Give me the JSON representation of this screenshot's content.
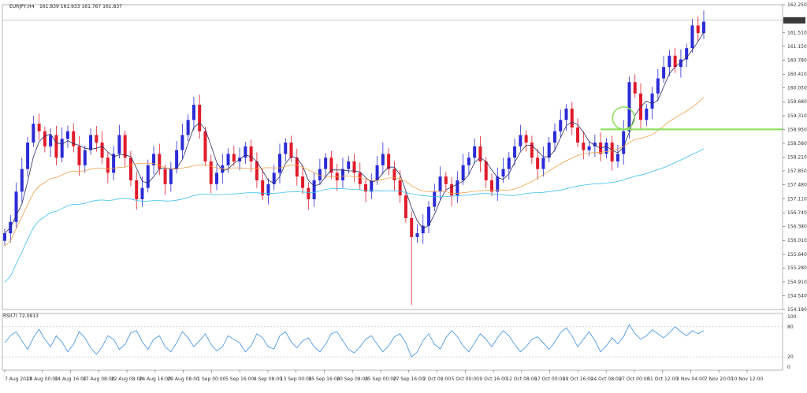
{
  "header": {
    "symbol": "EURJPY,H4",
    "ohlc": "161.839 161.933 161.767 161.837"
  },
  "colors": {
    "bull": "#2b2bd6",
    "bear": "#e01b2a",
    "wick": "#333355",
    "ma_fast": "#2c2c66",
    "ma_mid": "#f0a24a",
    "ma_slow": "#38bff0",
    "rsi": "#3a8fe0",
    "level": "#8fe060",
    "price_tag_bg": "#3a3a3a"
  },
  "chart_data": [
    {
      "type": "candlestick",
      "title": "EURJPY,H4",
      "yticks": [
        "162.250",
        "161.510",
        "161.150",
        "160.780",
        "160.410",
        "160.050",
        "159.680",
        "159.310",
        "158.950",
        "158.580",
        "158.210",
        "157.850",
        "157.480",
        "157.110",
        "156.740",
        "156.380",
        "156.010",
        "155.640",
        "155.280",
        "154.910",
        "154.540",
        "154.180"
      ],
      "ylim": [
        154.18,
        162.25
      ],
      "current_price": "161.837",
      "horizontal_level": 158.95,
      "circle_annotation": {
        "x_label": "31 Oct 12:00",
        "price": 159.25
      },
      "xticks": [
        "7 Aug 2023",
        "10 Aug 00:00",
        "14 Aug 16:00",
        "17 Aug 08:00",
        "22 Aug 08:00",
        "24 Aug 16:00",
        "29 Aug 08:00",
        "1 Sep 00:00",
        "5 Sep 16:00",
        "8 Sep 08:00",
        "13 Sep 00:00",
        "15 Sep 16:00",
        "20 Sep 08:00",
        "25 Sep 00:00",
        "27 Sep 16:00",
        "2 Oct 08:00",
        "5 Oct 00:00",
        "9 Oct 16:00",
        "12 Oct 08:00",
        "17 Oct 00:00",
        "19 Oct 16:00",
        "24 Oct 08:00",
        "27 Oct 00:00",
        "31 Oct 12:00",
        "3 Nov 04:00",
        "7 Nov 20:00",
        "10 Nov 12:00"
      ],
      "series": [
        {
          "name": "EURJPY close",
          "values": [
            156.2,
            156.5,
            157.3,
            157.9,
            158.6,
            159.1,
            158.9,
            158.5,
            158.8,
            158.2,
            158.7,
            158.9,
            158.5,
            158.0,
            158.4,
            158.8,
            158.6,
            158.2,
            157.8,
            158.3,
            158.8,
            158.2,
            157.6,
            157.1,
            157.4,
            158.0,
            158.3,
            157.9,
            157.5,
            157.9,
            158.4,
            158.8,
            159.2,
            159.6,
            158.9,
            158.1,
            157.5,
            157.8,
            158.0,
            158.3,
            158.1,
            158.2,
            158.5,
            158.1,
            157.6,
            157.2,
            157.5,
            157.8,
            158.3,
            158.6,
            158.2,
            157.7,
            157.4,
            157.1,
            157.6,
            157.9,
            158.2,
            157.8,
            157.6,
            157.9,
            158.1,
            157.8,
            157.5,
            157.3,
            157.6,
            158.0,
            158.3,
            157.9,
            157.6,
            157.2,
            156.6,
            156.1,
            156.2,
            156.4,
            156.9,
            157.3,
            157.7,
            157.5,
            157.2,
            157.6,
            158.0,
            158.2,
            158.5,
            158.1,
            157.6,
            157.3,
            157.7,
            157.9,
            158.2,
            158.5,
            158.8,
            158.6,
            158.2,
            157.9,
            158.2,
            158.6,
            158.9,
            159.2,
            159.5,
            159.0,
            158.6,
            158.4,
            158.5,
            158.6,
            158.3,
            158.6,
            158.1,
            158.3,
            158.9,
            160.2,
            159.9,
            159.2,
            159.5,
            159.9,
            160.3,
            160.6,
            160.9,
            160.6,
            160.8,
            161.1,
            161.7,
            161.5,
            161.8
          ]
        },
        {
          "name": "RSI(7)",
          "values": [
            48,
            62,
            70,
            52,
            35,
            58,
            75,
            55,
            40,
            62,
            50,
            30,
            45,
            70,
            58,
            38,
            25,
            40,
            62,
            55,
            35,
            45,
            68,
            72,
            50,
            35,
            55,
            62,
            40,
            30,
            48,
            70,
            58,
            40,
            52,
            66,
            45,
            32,
            40,
            62,
            55,
            48,
            30,
            42,
            66,
            58,
            40,
            36,
            62,
            70,
            50,
            38,
            52,
            58,
            40,
            30,
            45,
            66,
            70,
            52,
            35,
            28,
            40,
            55,
            62,
            45,
            30,
            42,
            60,
            66,
            48,
            20,
            30,
            52,
            66,
            45,
            36,
            58,
            72,
            60,
            42,
            30,
            48,
            66,
            55,
            40,
            58,
            72,
            62,
            45,
            30,
            40,
            55,
            60,
            48,
            35,
            50,
            68,
            78,
            62,
            40,
            55,
            70,
            52,
            30,
            42,
            58,
            46,
            60,
            84,
            66,
            55,
            62,
            74,
            66,
            58,
            68,
            80,
            70,
            62,
            72,
            66,
            72
          ]
        }
      ],
      "rsi_label": "RSI(7) 72.0913",
      "rsi_levels": [
        "100",
        "80",
        "20",
        "0"
      ]
    }
  ]
}
